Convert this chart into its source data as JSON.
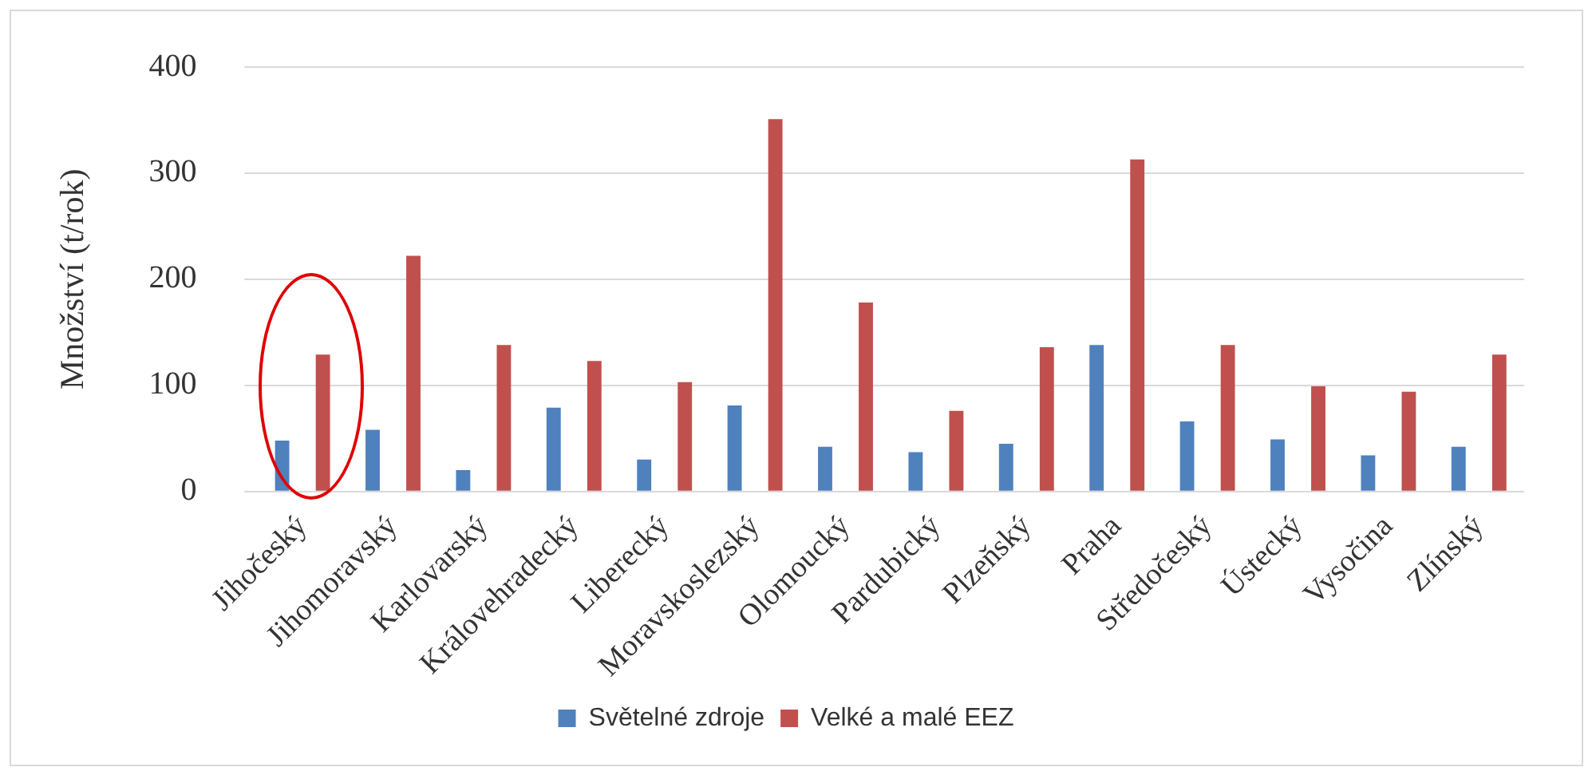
{
  "chart_data": {
    "type": "bar",
    "ylabel": "Množství (t/rok)",
    "categories": [
      "Jihočeský",
      "Jihomoravský",
      "Karlovarský",
      "Královehradecký",
      "Liberecký",
      "Moravskoslezský",
      "Olomoucký",
      "Pardubický",
      "Plzeňský",
      "Praha",
      "Středočeský",
      "Ústecký",
      "Vysočina",
      "Zlínský"
    ],
    "series": [
      {
        "name": "Světelné zdroje",
        "color": "#4f81bd",
        "values": [
          48,
          58,
          20,
          79,
          30,
          81,
          42,
          37,
          45,
          138,
          66,
          49,
          34,
          42
        ]
      },
      {
        "name": "Velké a malé EEZ",
        "color": "#c0504d",
        "values": [
          129,
          222,
          138,
          123,
          103,
          351,
          178,
          76,
          136,
          313,
          138,
          99,
          94,
          129
        ]
      }
    ],
    "ylim": [
      0,
      400
    ],
    "yticks": [
      0,
      100,
      200,
      300,
      400
    ],
    "grid": "y",
    "legend": "bottom"
  }
}
